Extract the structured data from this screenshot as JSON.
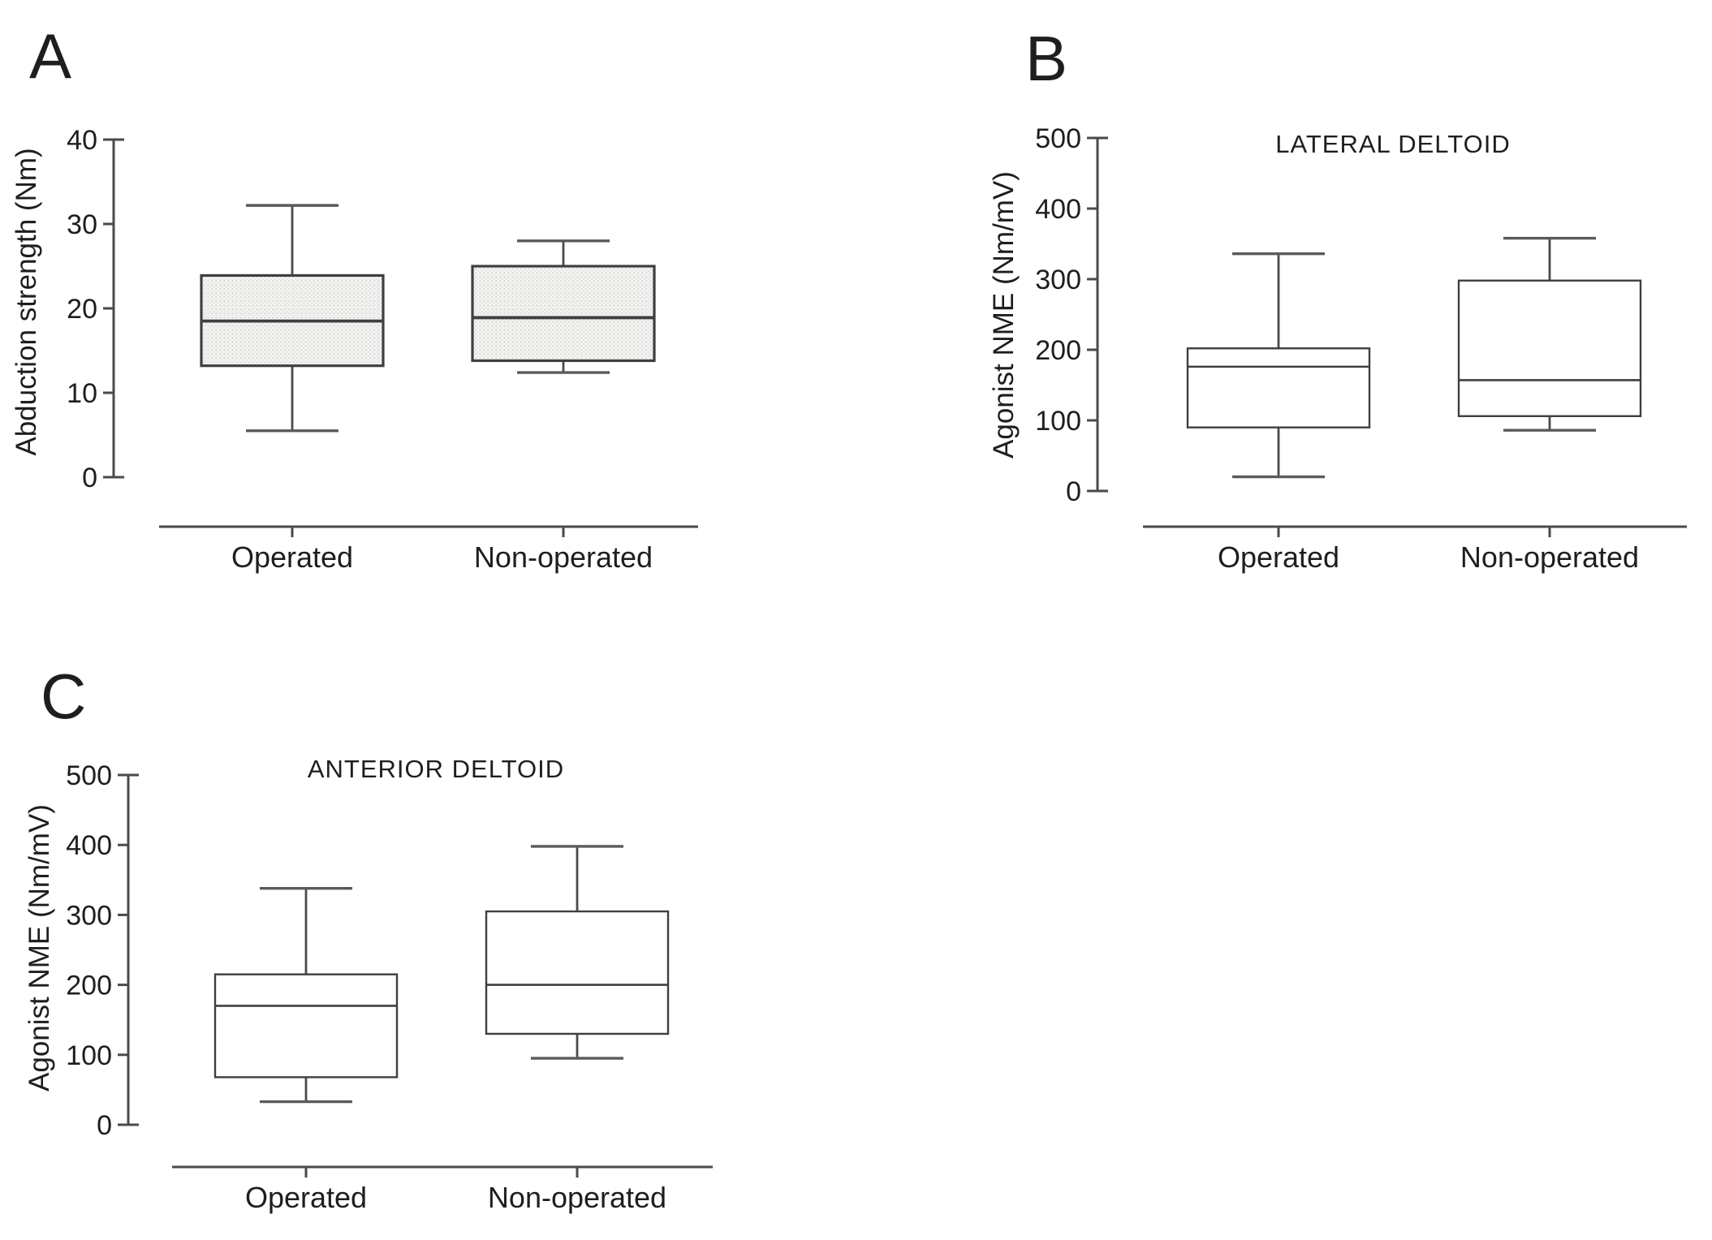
{
  "figure": {
    "background": "#ffffff",
    "colors": {
      "line": "#4a4a4a",
      "box_edge": "#3f3f3f",
      "text": "#1e1e1e",
      "pattern_base": "#f3f3f1",
      "pattern_dot": "#d2d2d0",
      "plain_box_fill": "#ffffff"
    }
  },
  "group_labels": [
    "Operated",
    "Non-operated"
  ],
  "chart_data": [
    {
      "type": "box",
      "panel_letter": "A",
      "title": "",
      "xlabel": "",
      "ylabel": "Abduction strength (Nm)",
      "ylim": [
        0,
        40
      ],
      "yticks": [
        0,
        10,
        20,
        30,
        40
      ],
      "categories": [
        "Operated",
        "Non-operated"
      ],
      "box_style": "dotted-pattern",
      "legend": "none",
      "grid": false,
      "series": [
        {
          "name": "Operated",
          "min": 5.5,
          "q1": 13.2,
          "median": 18.5,
          "q3": 23.9,
          "max": 32.2
        },
        {
          "name": "Non-operated",
          "min": 12.4,
          "q1": 13.8,
          "median": 18.9,
          "q3": 25.0,
          "max": 28.0
        }
      ]
    },
    {
      "type": "box",
      "panel_letter": "B",
      "title": "LATERAL DELTOID",
      "xlabel": "",
      "ylabel": "Agonist NME (Nm/mV)",
      "ylim": [
        0,
        500
      ],
      "yticks": [
        0,
        100,
        200,
        300,
        400,
        500
      ],
      "categories": [
        "Operated",
        "Non-operated"
      ],
      "box_style": "plain",
      "legend": "none",
      "grid": false,
      "series": [
        {
          "name": "Operated",
          "min": 20,
          "q1": 90,
          "median": 176,
          "q3": 202,
          "max": 336
        },
        {
          "name": "Non-operated",
          "min": 86,
          "q1": 106,
          "median": 157,
          "q3": 298,
          "max": 358
        }
      ]
    },
    {
      "type": "box",
      "panel_letter": "C",
      "title": "ANTERIOR DELTOID",
      "xlabel": "",
      "ylabel": "Agonist NME (Nm/mV)",
      "ylim": [
        0,
        500
      ],
      "yticks": [
        0,
        100,
        200,
        300,
        400,
        500
      ],
      "categories": [
        "Operated",
        "Non-operated"
      ],
      "box_style": "plain",
      "legend": "none",
      "grid": false,
      "series": [
        {
          "name": "Operated",
          "min": 33,
          "q1": 68,
          "median": 170,
          "q3": 215,
          "max": 338
        },
        {
          "name": "Non-operated",
          "min": 95,
          "q1": 130,
          "median": 200,
          "q3": 305,
          "max": 398
        }
      ]
    }
  ]
}
